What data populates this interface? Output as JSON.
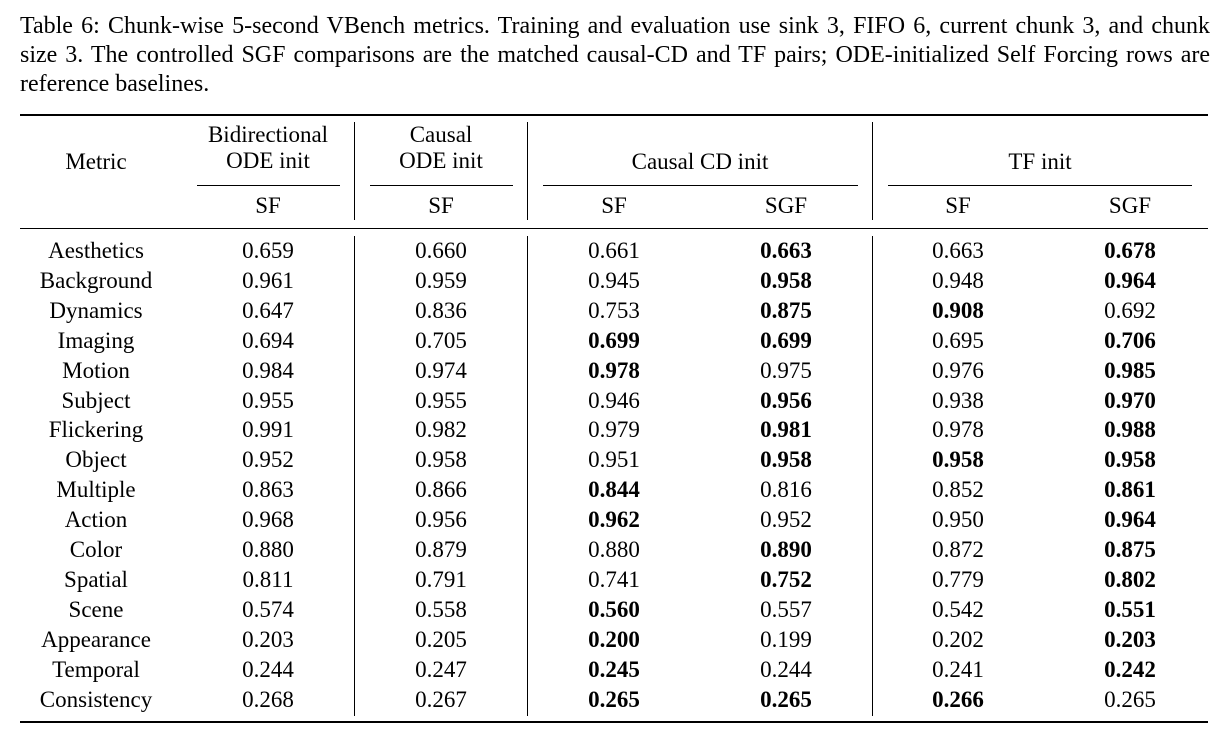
{
  "caption": "Table 6: Chunk-wise 5-second VBench metrics. Training and evaluation use sink 3, FIFO 6, current chunk 3, and chunk size 3. The controlled SGF comparisons are the matched causal-CD and TF pairs; ODE-initialized Self Forcing rows are reference baselines.",
  "header": {
    "metric": "Metric",
    "groups": [
      {
        "lines": [
          "Bidirectional",
          "ODE init"
        ]
      },
      {
        "lines": [
          "Causal",
          "ODE init"
        ]
      },
      {
        "lines": [
          "Causal CD init"
        ]
      },
      {
        "lines": [
          "TF init"
        ]
      }
    ],
    "subcols": [
      "SF",
      "SF",
      "SF",
      "SGF",
      "SF",
      "SGF"
    ]
  },
  "rows": [
    {
      "metric": "Aesthetics",
      "values": [
        "0.659",
        "0.660",
        "0.661",
        "0.663",
        "0.663",
        "0.678"
      ],
      "bold": [
        false,
        false,
        false,
        true,
        false,
        true
      ]
    },
    {
      "metric": "Background",
      "values": [
        "0.961",
        "0.959",
        "0.945",
        "0.958",
        "0.948",
        "0.964"
      ],
      "bold": [
        false,
        false,
        false,
        true,
        false,
        true
      ]
    },
    {
      "metric": "Dynamics",
      "values": [
        "0.647",
        "0.836",
        "0.753",
        "0.875",
        "0.908",
        "0.692"
      ],
      "bold": [
        false,
        false,
        false,
        true,
        true,
        false
      ]
    },
    {
      "metric": "Imaging",
      "values": [
        "0.694",
        "0.705",
        "0.699",
        "0.699",
        "0.695",
        "0.706"
      ],
      "bold": [
        false,
        false,
        true,
        true,
        false,
        true
      ]
    },
    {
      "metric": "Motion",
      "values": [
        "0.984",
        "0.974",
        "0.978",
        "0.975",
        "0.976",
        "0.985"
      ],
      "bold": [
        false,
        false,
        true,
        false,
        false,
        true
      ]
    },
    {
      "metric": "Subject",
      "values": [
        "0.955",
        "0.955",
        "0.946",
        "0.956",
        "0.938",
        "0.970"
      ],
      "bold": [
        false,
        false,
        false,
        true,
        false,
        true
      ]
    },
    {
      "metric": "Flickering",
      "values": [
        "0.991",
        "0.982",
        "0.979",
        "0.981",
        "0.978",
        "0.988"
      ],
      "bold": [
        false,
        false,
        false,
        true,
        false,
        true
      ]
    },
    {
      "metric": "Object",
      "values": [
        "0.952",
        "0.958",
        "0.951",
        "0.958",
        "0.958",
        "0.958"
      ],
      "bold": [
        false,
        false,
        false,
        true,
        true,
        true
      ]
    },
    {
      "metric": "Multiple",
      "values": [
        "0.863",
        "0.866",
        "0.844",
        "0.816",
        "0.852",
        "0.861"
      ],
      "bold": [
        false,
        false,
        true,
        false,
        false,
        true
      ]
    },
    {
      "metric": "Action",
      "values": [
        "0.968",
        "0.956",
        "0.962",
        "0.952",
        "0.950",
        "0.964"
      ],
      "bold": [
        false,
        false,
        true,
        false,
        false,
        true
      ]
    },
    {
      "metric": "Color",
      "values": [
        "0.880",
        "0.879",
        "0.880",
        "0.890",
        "0.872",
        "0.875"
      ],
      "bold": [
        false,
        false,
        false,
        true,
        false,
        true
      ]
    },
    {
      "metric": "Spatial",
      "values": [
        "0.811",
        "0.791",
        "0.741",
        "0.752",
        "0.779",
        "0.802"
      ],
      "bold": [
        false,
        false,
        false,
        true,
        false,
        true
      ]
    },
    {
      "metric": "Scene",
      "values": [
        "0.574",
        "0.558",
        "0.560",
        "0.557",
        "0.542",
        "0.551"
      ],
      "bold": [
        false,
        false,
        true,
        false,
        false,
        true
      ]
    },
    {
      "metric": "Appearance",
      "values": [
        "0.203",
        "0.205",
        "0.200",
        "0.199",
        "0.202",
        "0.203"
      ],
      "bold": [
        false,
        false,
        true,
        false,
        false,
        true
      ]
    },
    {
      "metric": "Temporal",
      "values": [
        "0.244",
        "0.247",
        "0.245",
        "0.244",
        "0.241",
        "0.242"
      ],
      "bold": [
        false,
        false,
        true,
        false,
        false,
        true
      ]
    },
    {
      "metric": "Consistency",
      "values": [
        "0.268",
        "0.267",
        "0.265",
        "0.265",
        "0.266",
        "0.265"
      ],
      "bold": [
        false,
        false,
        true,
        true,
        true,
        false
      ]
    }
  ]
}
